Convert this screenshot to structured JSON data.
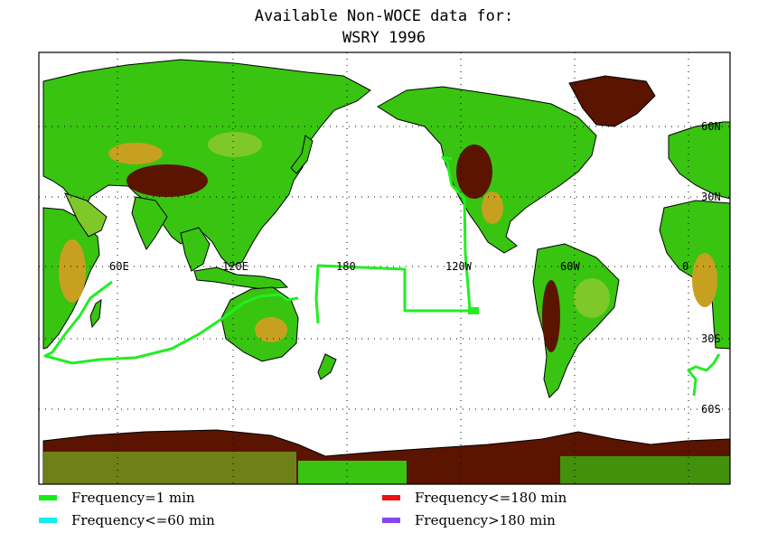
{
  "title": {
    "line1": "Available Non-WOCE data for:",
    "line2": "WSRY 1996"
  },
  "map": {
    "lon_labels": [
      "60E",
      "120E",
      "180",
      "120W",
      "60W",
      "0"
    ],
    "lat_labels": [
      "60N",
      "30N",
      "30S",
      "60S"
    ],
    "colors": {
      "ocean": "#ffffff",
      "land_low": "#38c410",
      "land_mid": "#7ec82a",
      "land_high": "#c8a020",
      "land_peak": "#5a1400",
      "coast": "#000000",
      "track": "#22ee22"
    }
  },
  "legend": [
    {
      "label": "Frequency=1 min",
      "color": "#11ee11"
    },
    {
      "label": "Frequency<=180 min",
      "color": "#ee1111"
    },
    {
      "label": "Frequency<=60 min",
      "color": "#11eeee"
    },
    {
      "label": "Frequency>180 min",
      "color": "#8844ee"
    }
  ]
}
